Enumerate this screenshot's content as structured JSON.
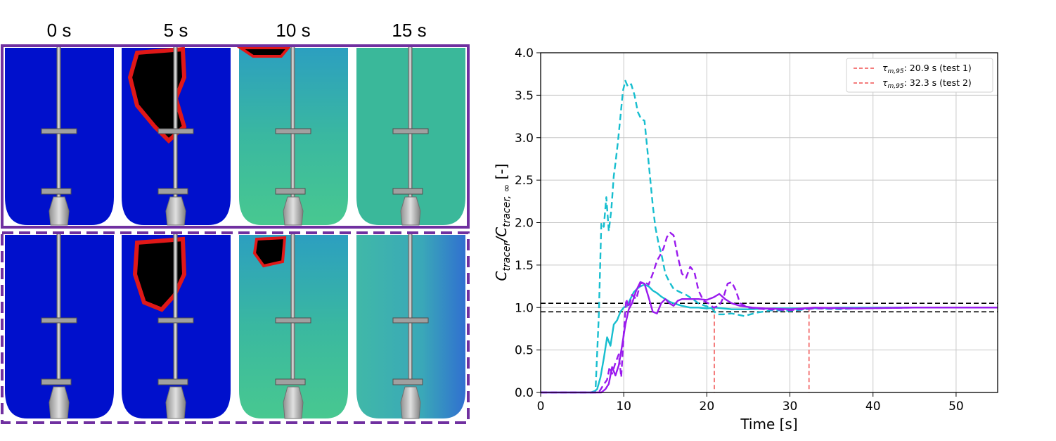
{
  "panel": {
    "time_labels": [
      "0 s",
      "5 s",
      "10 s",
      "15 s"
    ],
    "rows": [
      {
        "border": "solid",
        "border_color": "#7030a0"
      },
      {
        "border": "dashed",
        "border_color": "#7030a0"
      }
    ],
    "colors": {
      "tank_low": "#0010cc",
      "tank_mid": "#2fb8a0",
      "hot_core": "#000000",
      "hot_ring": "#e01818"
    }
  },
  "chart_data": {
    "type": "line",
    "xlabel": "Time [s]",
    "ylabel_main": "C",
    "ylabel_sub1": "tracer",
    "ylabel_slash": "/C",
    "ylabel_sub2": "tracer, ∞",
    "ylabel_unit": " [-]",
    "xlim": [
      0,
      55
    ],
    "ylim": [
      0,
      4.0
    ],
    "xticks": [
      0,
      10,
      20,
      30,
      40,
      50
    ],
    "yticks": [
      0.0,
      0.5,
      1.0,
      1.5,
      2.0,
      2.5,
      3.0,
      3.5,
      4.0
    ],
    "grid": true,
    "legend_position": "top-right",
    "legend": [
      {
        "tau": "τ",
        "sub": "m,95",
        "text": ": 20.9 s (test 1)",
        "color": "#f05050"
      },
      {
        "tau": "τ",
        "sub": "m,95",
        "text": ": 32.3 s (test 2)",
        "color": "#f05050"
      }
    ],
    "band": {
      "upper": 1.05,
      "lower": 0.95,
      "color": "#000000"
    },
    "mixing_times": [
      {
        "x": 20.9,
        "color": "#f05050"
      },
      {
        "x": 32.3,
        "color": "#f05050"
      }
    ],
    "series": [
      {
        "color": "#17becf",
        "style": "dashed",
        "x": [
          0,
          6.0,
          6.6,
          7.0,
          7.3,
          7.6,
          7.9,
          8.2,
          8.5,
          8.8,
          9.0,
          9.3,
          9.6,
          9.9,
          10.2,
          10.5,
          10.9,
          11.3,
          11.7,
          12.1,
          12.5,
          12.9,
          13.2,
          13.5,
          13.8,
          14.2,
          14.6,
          15.0,
          15.5,
          16.0,
          16.8,
          17.5,
          18.3,
          19.0,
          19.8,
          20.5,
          21.2,
          22.0,
          23.0,
          24.5,
          26.0,
          28.0,
          30.0,
          33.0,
          36.0,
          40.0,
          45.0,
          55.0
        ],
        "y": [
          0,
          0,
          0.02,
          0.9,
          2.0,
          1.95,
          2.3,
          1.9,
          2.15,
          2.55,
          2.7,
          2.95,
          3.25,
          3.55,
          3.67,
          3.6,
          3.63,
          3.5,
          3.3,
          3.22,
          3.2,
          2.8,
          2.5,
          2.2,
          1.95,
          1.75,
          1.6,
          1.4,
          1.3,
          1.22,
          1.18,
          1.15,
          1.1,
          1.05,
          1.02,
          1.0,
          0.92,
          0.92,
          0.93,
          0.9,
          0.94,
          0.97,
          0.96,
          0.99,
          0.98,
          1.0,
          1.0,
          1.0
        ]
      },
      {
        "color": "#17becf",
        "style": "solid",
        "x": [
          0,
          6.3,
          6.8,
          7.2,
          7.6,
          8.0,
          8.4,
          8.8,
          9.2,
          9.6,
          10.0,
          10.4,
          10.8,
          11.2,
          11.6,
          12.0,
          12.5,
          13.0,
          13.5,
          14.0,
          14.5,
          15.0,
          15.5,
          16.0,
          17.0,
          18.0,
          19.0,
          20.0,
          21.0,
          22.0,
          23.0,
          25.0,
          28.0,
          32.0,
          36.0,
          40.0,
          45.0,
          55.0
        ],
        "y": [
          0,
          0,
          0.04,
          0.18,
          0.4,
          0.65,
          0.55,
          0.8,
          0.85,
          0.95,
          1.0,
          1.02,
          1.1,
          1.18,
          1.22,
          1.25,
          1.27,
          1.25,
          1.2,
          1.17,
          1.13,
          1.1,
          1.07,
          1.05,
          1.02,
          1.0,
          1.0,
          0.99,
          1.0,
          0.99,
          0.98,
          0.98,
          0.99,
          0.99,
          1.0,
          1.0,
          1.0,
          1.0
        ]
      },
      {
        "color": "#9a1aee",
        "style": "dashed",
        "x": [
          0,
          7.0,
          7.5,
          8.0,
          8.3,
          8.6,
          9.0,
          9.4,
          9.7,
          10.0,
          10.3,
          10.6,
          11.0,
          11.5,
          12.0,
          12.5,
          13.0,
          13.5,
          14.0,
          14.4,
          14.8,
          15.2,
          15.6,
          16.0,
          16.5,
          17.0,
          17.5,
          18.0,
          18.5,
          19.0,
          19.6,
          20.2,
          20.8,
          21.5,
          22.0,
          22.5,
          23.0,
          23.5,
          24.0,
          25.0,
          27.0,
          30.0,
          33.0,
          38.0,
          45.0,
          55.0
        ],
        "y": [
          0,
          0,
          0.08,
          0.15,
          0.3,
          0.22,
          0.35,
          0.45,
          0.18,
          0.7,
          1.1,
          1.0,
          1.15,
          1.1,
          1.28,
          1.3,
          1.27,
          1.4,
          1.55,
          1.62,
          1.7,
          1.83,
          1.88,
          1.85,
          1.6,
          1.4,
          1.35,
          1.48,
          1.42,
          1.2,
          1.08,
          1.05,
          1.0,
          1.02,
          1.12,
          1.28,
          1.3,
          1.2,
          1.05,
          1.0,
          0.98,
          0.97,
          0.99,
          0.99,
          1.0,
          1.0
        ]
      },
      {
        "color": "#9a1aee",
        "style": "solid",
        "x": [
          0,
          7.3,
          7.8,
          8.2,
          8.6,
          9.0,
          9.4,
          9.8,
          10.2,
          10.6,
          11.0,
          11.5,
          12.0,
          12.5,
          13.0,
          13.5,
          14.0,
          14.5,
          15.0,
          15.5,
          16.0,
          16.5,
          17.0,
          18.0,
          19.0,
          20.0,
          20.8,
          21.5,
          22.2,
          23.0,
          24.0,
          25.5,
          27.0,
          30.0,
          33.0,
          38.0,
          45.0,
          55.0
        ],
        "y": [
          0,
          0,
          0.04,
          0.1,
          0.3,
          0.2,
          0.32,
          0.55,
          0.8,
          0.98,
          1.05,
          1.2,
          1.3,
          1.28,
          1.12,
          0.95,
          0.93,
          1.05,
          1.1,
          1.05,
          1.02,
          1.08,
          1.1,
          1.1,
          1.1,
          1.09,
          1.12,
          1.16,
          1.1,
          1.05,
          1.02,
          1.0,
          0.99,
          0.98,
          1.0,
          0.99,
          1.0,
          1.0
        ]
      }
    ]
  }
}
